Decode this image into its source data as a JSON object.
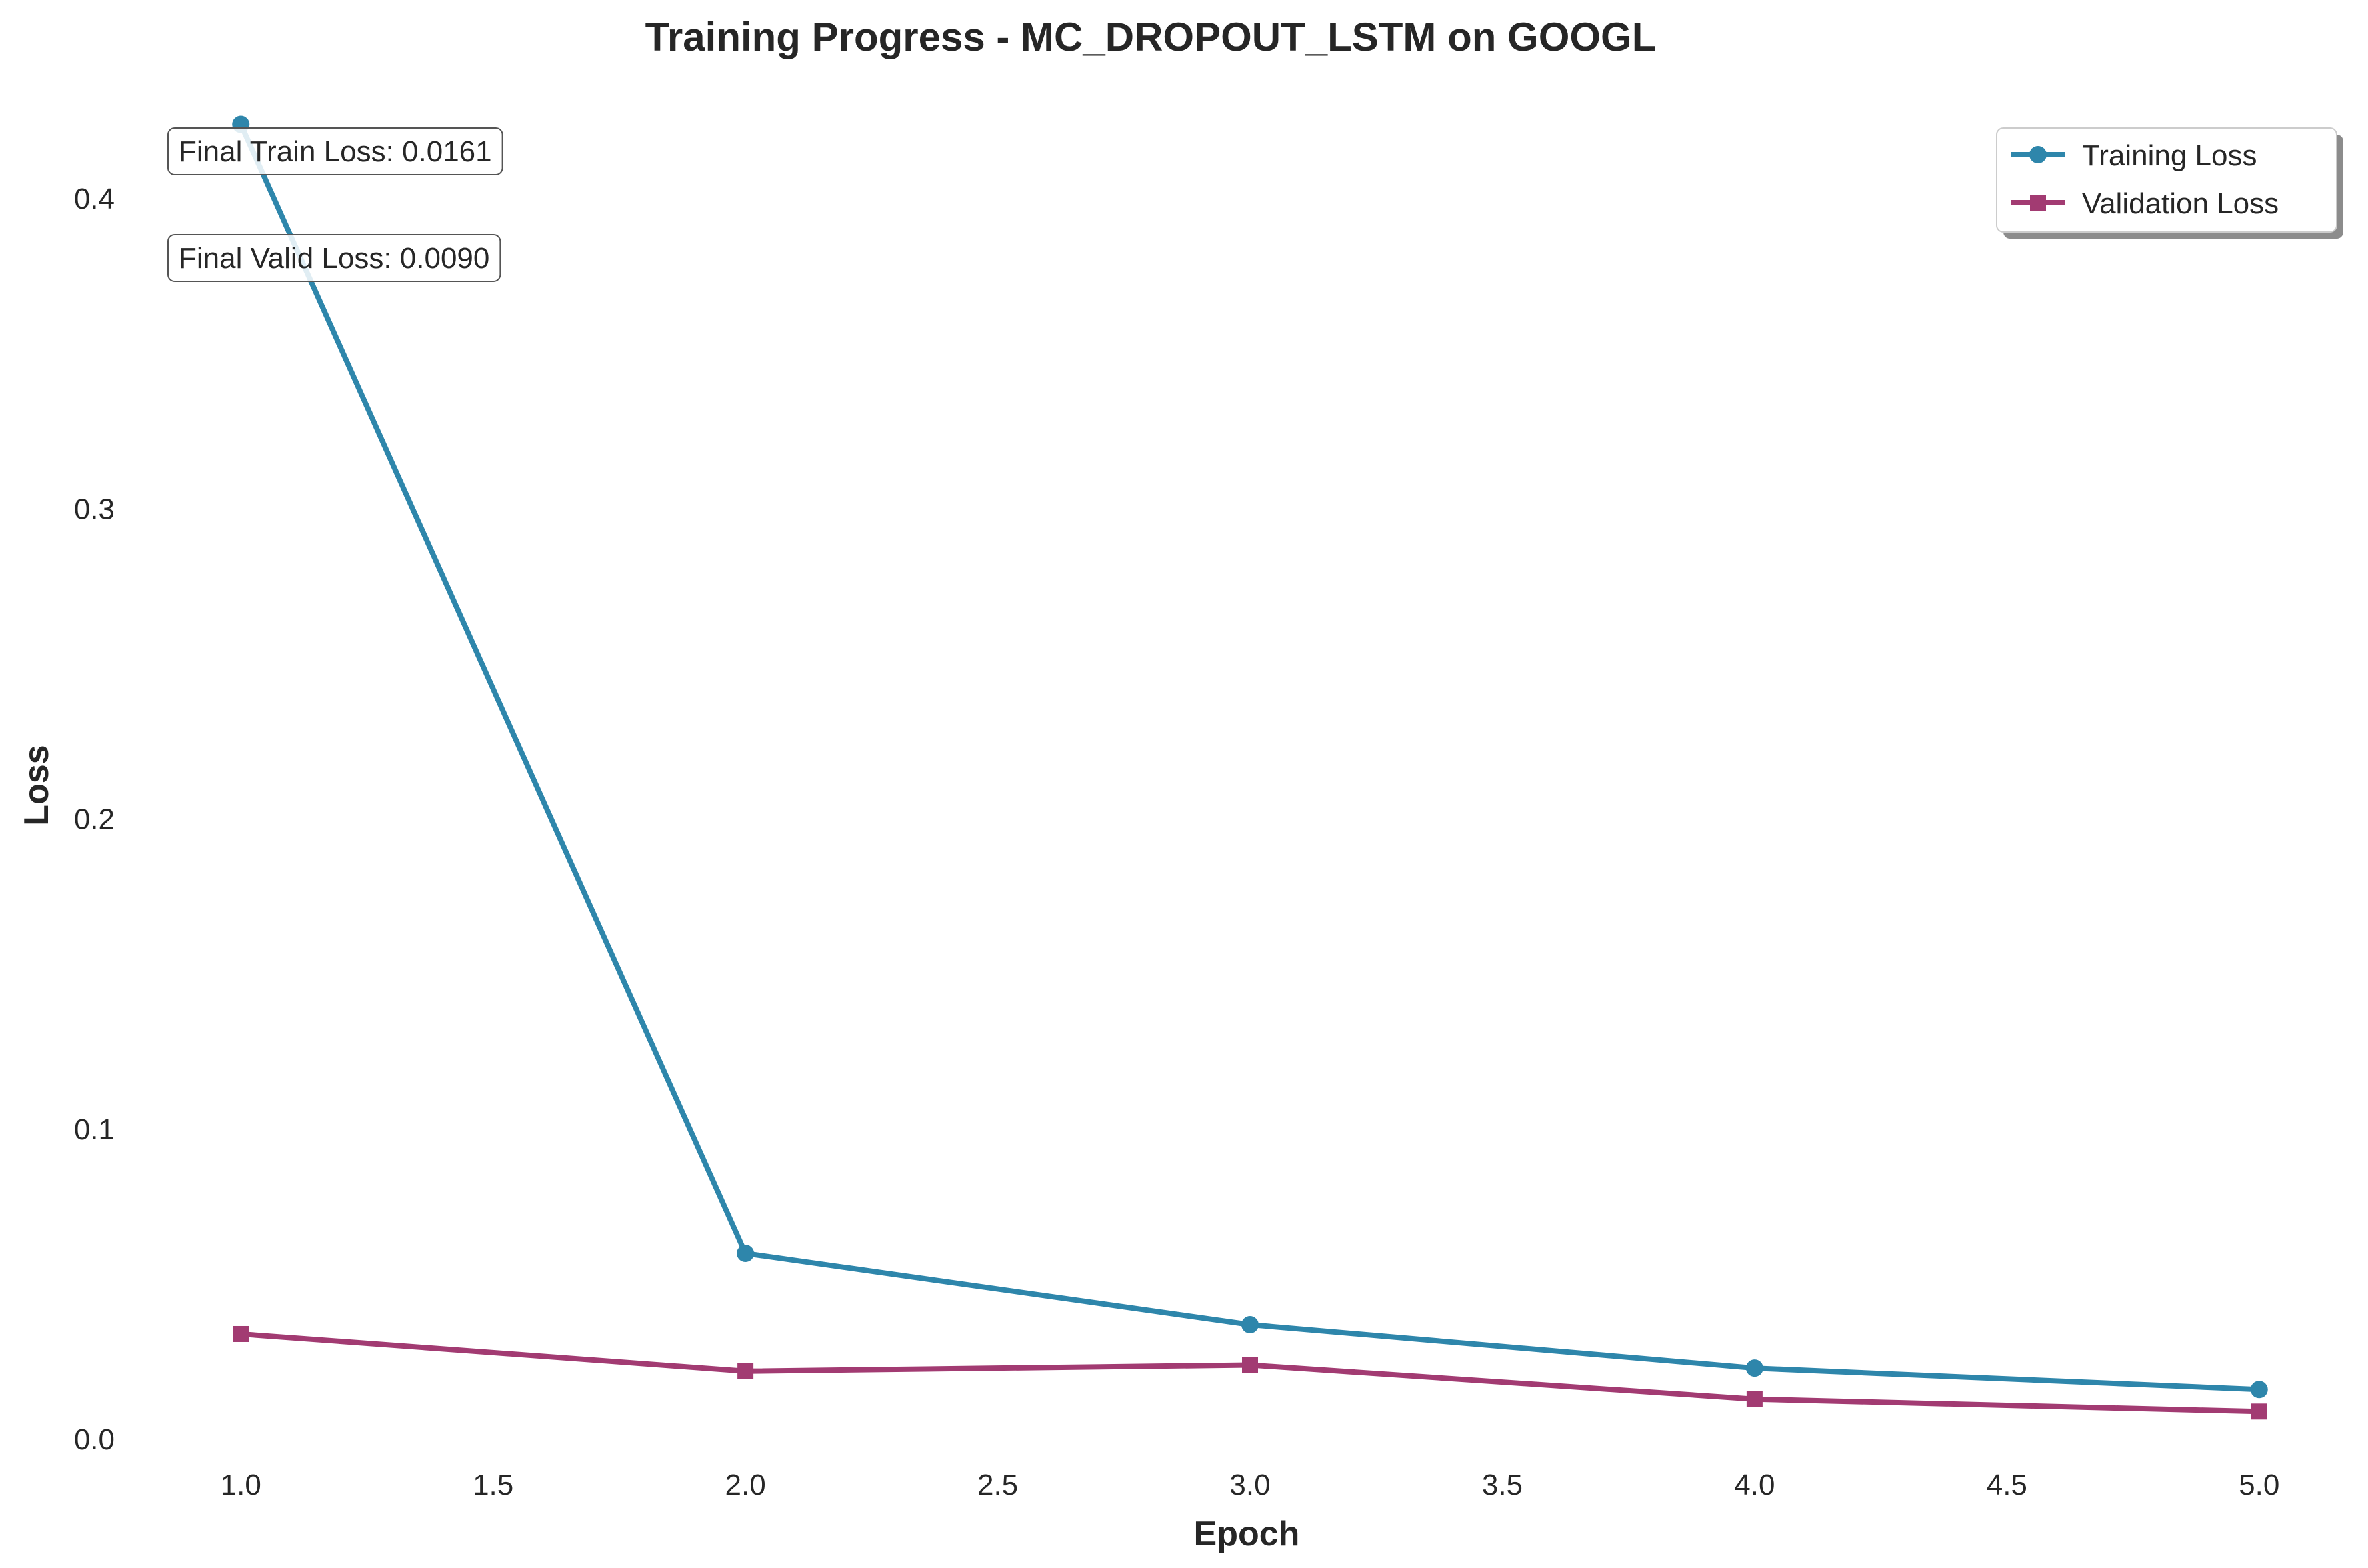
{
  "chart_data": {
    "type": "line",
    "title": "Training Progress - MC_DROPOUT_LSTM on GOOGL",
    "xlabel": "Epoch",
    "ylabel": "Loss",
    "xlim": [
      0.82,
      5.18
    ],
    "ylim": [
      -0.012,
      0.434
    ],
    "x_ticks": [
      "1.0",
      "1.5",
      "2.0",
      "2.5",
      "3.0",
      "3.5",
      "4.0",
      "4.5",
      "5.0"
    ],
    "y_ticks": [
      "0.0",
      "0.1",
      "0.2",
      "0.3",
      "0.4"
    ],
    "x": [
      1,
      2,
      3,
      4,
      5
    ],
    "series": [
      {
        "name": "Training Loss",
        "color": "#2e86ab",
        "marker": "circle",
        "values": [
          0.424,
          0.06,
          0.037,
          0.023,
          0.0161
        ]
      },
      {
        "name": "Validation Loss",
        "color": "#a23b72",
        "marker": "square",
        "values": [
          0.034,
          0.022,
          0.024,
          0.013,
          0.009
        ]
      }
    ],
    "annotations": [
      "Final Train Loss: 0.0161",
      "Final Valid Loss: 0.0090"
    ],
    "legend_position": "top-right",
    "grid": false
  }
}
